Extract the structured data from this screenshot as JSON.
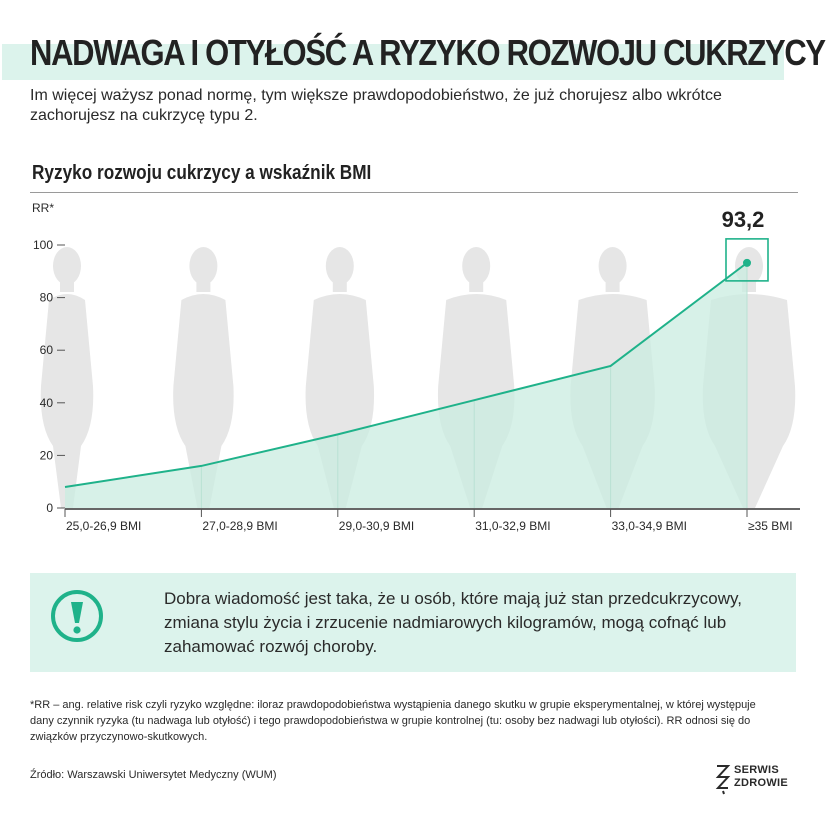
{
  "header": {
    "title": "NADWAGA I OTYŁOŚĆ A RYZYKO ROZWOJU CUKRZYCY",
    "subtitle": "Im więcej ważysz ponad normę, tym większe prawdopodobieństwo, że już chorujesz albo wkrótce  zachorujesz na cukrzycę typu 2."
  },
  "section": {
    "title": "Ryzyko rozwoju cukrzycy a wskaźnik BMI"
  },
  "chart_data": {
    "type": "area",
    "ylabel": "RR*",
    "categories": [
      "25,0-26,9 BMI",
      "27,0-28,9 BMI",
      "29,0-30,9 BMI",
      "31,0-32,9 BMI",
      "33,0-34,9 BMI",
      "≥35 BMI"
    ],
    "values": [
      8,
      16,
      28,
      41,
      54,
      93.2
    ],
    "highlight_label": "93,2",
    "yticks": [
      "0",
      "20",
      "40",
      "60",
      "80",
      "100"
    ],
    "ylim": [
      0,
      100
    ],
    "grid": false,
    "colors": {
      "line": "#1fb28a",
      "fill": "#c9ece0",
      "silhouette": "#e6e6e6",
      "highlight": "#1fb28a"
    }
  },
  "info": {
    "icon": "exclamation-icon",
    "text": "Dobra wiadomość jest taka, że u osób, które mają już stan przedcukrzycowy, zmiana stylu życia i zrzucenie nadmiarowych kilogramów, mogą cofnąć lub zahamować rozwój choroby."
  },
  "footnote": "*RR – ang. relative risk czyli ryzyko względne: iloraz prawdopodobieństwa wystąpienia danego skutku w grupie eksperymentalnej, w której występuje dany czynnik ryzyka (tu nadwaga lub otyłość) i tego prawdopodobieństwa w grupie kontrolnej (tu: osoby bez nadwagi lub otyłości). RR odnosi się do związków przyczynowo-skutkowych.",
  "source": "Źródło: Warszawski Uniwersytet Medyczny (WUM)",
  "logo": {
    "line1": "SERWIS",
    "line2": "ZDROWIE",
    "icon": "zigzag-logo-icon"
  }
}
